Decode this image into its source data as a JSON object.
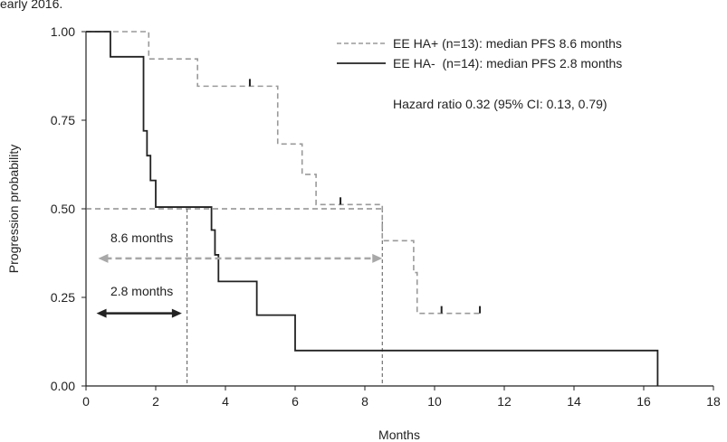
{
  "chart_data": {
    "type": "line",
    "step": true,
    "top_fragment": "early 2016.",
    "xlabel": "Months",
    "ylabel": "Progression probability",
    "xlim": [
      0,
      18
    ],
    "ylim": [
      0,
      1
    ],
    "xticks": [
      0,
      2,
      4,
      6,
      8,
      10,
      12,
      14,
      16,
      18
    ],
    "xtick_labels": [
      "0",
      "2",
      "4",
      "6",
      "8",
      "10",
      "12",
      "14",
      "16",
      "18"
    ],
    "yticks": [
      0,
      0.25,
      0.5,
      0.75,
      1.0
    ],
    "ytick_labels": [
      "0.00",
      "0.25",
      "0.50",
      "0.75",
      "1.00"
    ],
    "grid": false,
    "legend_position": "top-right",
    "series": [
      {
        "name": "EE HA+ (n=13): median PFS 8.6 months",
        "style": "dashed",
        "color": "#9a9a9a",
        "x": [
          0,
          1.8,
          3.2,
          5.5,
          6.2,
          6.6,
          8.5,
          9.4,
          9.5,
          11.3
        ],
        "y": [
          1.0,
          0.923,
          0.846,
          0.683,
          0.597,
          0.512,
          0.41,
          0.32,
          0.205,
          0.205
        ],
        "censored": [
          [
            4.7,
            0.846
          ],
          [
            7.3,
            0.512
          ],
          [
            10.2,
            0.205
          ],
          [
            11.3,
            0.205
          ]
        ]
      },
      {
        "name": "EE HA-  (n=14): median PFS 2.8 months",
        "style": "solid",
        "color": "#222222",
        "x": [
          0,
          0.7,
          1.65,
          1.75,
          1.85,
          2.0,
          3.6,
          3.7,
          3.8,
          4.9,
          6.0,
          16.4
        ],
        "y": [
          1.0,
          0.929,
          0.72,
          0.65,
          0.58,
          0.505,
          0.44,
          0.37,
          0.295,
          0.2,
          0.1,
          0.0
        ],
        "censored": []
      }
    ],
    "annotations": {
      "hazard_ratio": "Hazard ratio 0.32 (95% CI: 0.13, 0.79)",
      "median_lines": {
        "y": 0.5,
        "x_values": [
          2.9,
          8.5
        ]
      },
      "arrow_8_6": {
        "label": "8.6 months",
        "x_from": 0.35,
        "x_to": 8.5,
        "y": 0.36,
        "label_x": 0.7,
        "label_y": 0.405
      },
      "arrow_2_8": {
        "label": "2.8 months",
        "x_from": 0.3,
        "x_to": 2.75,
        "y": 0.205,
        "label_x": 0.7,
        "label_y": 0.255
      }
    }
  }
}
